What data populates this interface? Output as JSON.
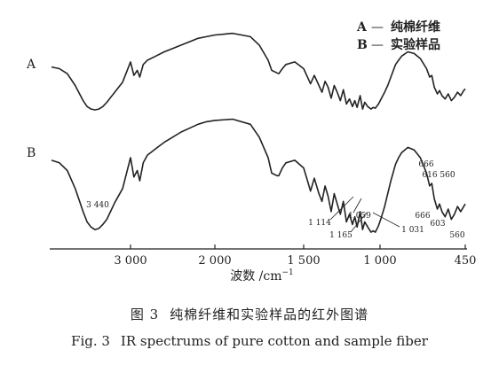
{
  "chart_data": {
    "type": "line",
    "xlabel": "波数 /cm",
    "xlabel_sup": "−1",
    "x_reversed": true,
    "xlim": [
      4000,
      450
    ],
    "x_ticks": [
      3000,
      2000,
      1500,
      1000,
      450
    ],
    "x_tick_labels": [
      "3 000",
      "2 000",
      "1 500",
      "1 000",
      "450"
    ],
    "legend": [
      {
        "key": "A",
        "dash": "—",
        "text": "纯棉纤维"
      },
      {
        "key": "B",
        "dash": "—",
        "text": "实验样品"
      }
    ],
    "legend_position": "top-right",
    "series": [
      {
        "name": "A",
        "x": [
          4000,
          3900,
          3800,
          3700,
          3600,
          3550,
          3500,
          3450,
          3400,
          3350,
          3300,
          3200,
          3100,
          3000,
          2960,
          2920,
          2890,
          2850,
          2800,
          2700,
          2600,
          2500,
          2400,
          2300,
          2200,
          2100,
          2000,
          1900,
          1800,
          1750,
          1700,
          1680,
          1650,
          1640,
          1620,
          1600,
          1550,
          1500,
          1470,
          1455,
          1430,
          1400,
          1380,
          1360,
          1340,
          1320,
          1300,
          1280,
          1260,
          1240,
          1220,
          1200,
          1180,
          1165,
          1150,
          1130,
          1114,
          1100,
          1080,
          1059,
          1045,
          1031,
          1010,
          990,
          970,
          950,
          930,
          900,
          880,
          860,
          820,
          780,
          740,
          700,
          680,
          666,
          650,
          630,
          616,
          600,
          580,
          560,
          540,
          520,
          500,
          480,
          460,
          450
        ],
        "y": [
          48,
          50,
          56,
          70,
          88,
          95,
          98,
          99,
          98,
          95,
          90,
          78,
          66,
          42,
          58,
          52,
          60,
          45,
          40,
          35,
          30,
          26,
          22,
          18,
          14,
          12,
          10,
          8,
          12,
          22,
          40,
          52,
          55,
          56,
          50,
          45,
          42,
          50,
          62,
          68,
          58,
          70,
          78,
          65,
          72,
          85,
          70,
          78,
          88,
          75,
          92,
          86,
          95,
          88,
          96,
          82,
          98,
          90,
          95,
          98,
          96,
          97,
          92,
          85,
          78,
          70,
          60,
          45,
          40,
          35,
          30,
          32,
          38,
          50,
          60,
          58,
          72,
          80,
          76,
          82,
          86,
          80,
          88,
          84,
          78,
          82,
          76,
          74
        ]
      },
      {
        "name": "B",
        "x": [
          4000,
          3900,
          3800,
          3700,
          3600,
          3550,
          3500,
          3450,
          3400,
          3350,
          3300,
          3200,
          3100,
          3000,
          2960,
          2920,
          2890,
          2850,
          2800,
          2700,
          2600,
          2500,
          2400,
          2300,
          2200,
          2100,
          2000,
          1900,
          1800,
          1750,
          1700,
          1680,
          1650,
          1640,
          1620,
          1600,
          1550,
          1500,
          1470,
          1455,
          1430,
          1400,
          1380,
          1360,
          1340,
          1320,
          1300,
          1280,
          1260,
          1240,
          1220,
          1200,
          1180,
          1165,
          1150,
          1130,
          1114,
          1100,
          1080,
          1059,
          1045,
          1031,
          1010,
          990,
          970,
          950,
          930,
          900,
          880,
          860,
          820,
          780,
          740,
          700,
          680,
          666,
          650,
          630,
          616,
          600,
          580,
          560,
          540,
          520,
          500,
          480,
          460,
          450
        ],
        "y": [
          42,
          44,
          50,
          64,
          82,
          90,
          94,
          96,
          95,
          92,
          88,
          75,
          64,
          40,
          55,
          50,
          58,
          44,
          38,
          33,
          28,
          24,
          20,
          17,
          14,
          12,
          11,
          10,
          14,
          24,
          40,
          52,
          54,
          54,
          48,
          44,
          42,
          48,
          60,
          66,
          56,
          68,
          74,
          62,
          70,
          82,
          68,
          76,
          84,
          74,
          90,
          84,
          92,
          86,
          94,
          82,
          96,
          90,
          94,
          98,
          97,
          98,
          93,
          86,
          78,
          68,
          58,
          45,
          40,
          36,
          32,
          34,
          40,
          52,
          62,
          60,
          72,
          80,
          76,
          82,
          86,
          80,
          88,
          84,
          78,
          82,
          78,
          76
        ]
      }
    ],
    "series_labels": [
      "A",
      "B"
    ],
    "annotations_A": [
      {
        "text": "666",
        "x": 666
      },
      {
        "text": "616 560",
        "x": 590
      }
    ],
    "annotations_B": [
      {
        "text": "3 440",
        "x": 3440
      },
      {
        "text": "1 114",
        "x": 1114
      },
      {
        "text": "1 059",
        "x": 1059
      },
      {
        "text": "1 165",
        "x": 1165
      },
      {
        "text": "1 031",
        "x": 1031
      },
      {
        "text": "666",
        "x": 666
      },
      {
        "text": "603",
        "x": 603
      },
      {
        "text": "560",
        "x": 560
      }
    ]
  },
  "caption": {
    "cn_num": "图 3",
    "cn_text": "纯棉纤维和实验样品的红外图谱",
    "en_num": "Fig. 3",
    "en_text": "IR spectrums of pure cotton and sample fiber"
  }
}
